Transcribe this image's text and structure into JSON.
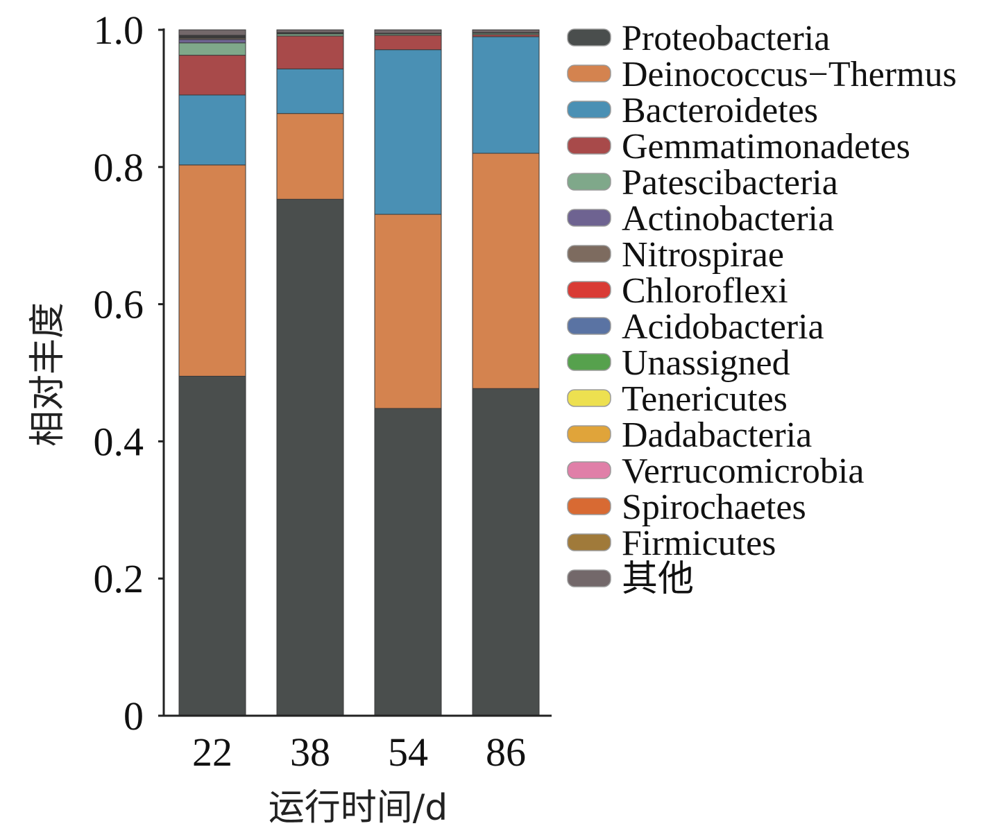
{
  "chart_data": {
    "type": "bar",
    "stacked": true,
    "xlabel": "运行时间/d",
    "ylabel": "相对丰度",
    "ylim": [
      0,
      1.0
    ],
    "yticks": [
      "0",
      "0.2",
      "0.4",
      "0.6",
      "0.8",
      "1.0"
    ],
    "ytick_values": [
      0,
      0.2,
      0.4,
      0.6,
      0.8,
      1.0
    ],
    "categories": [
      "22",
      "38",
      "54",
      "86"
    ],
    "legend_position": "right",
    "series": [
      {
        "name": "Proteobacteria",
        "color": "#4a4e4d",
        "values": [
          0.495,
          0.753,
          0.448,
          0.477
        ]
      },
      {
        "name": "Deinococcus−Thermus",
        "color": "#d4834f",
        "values": [
          0.308,
          0.125,
          0.283,
          0.343
        ]
      },
      {
        "name": "Bacteroidetes",
        "color": "#4a90b4",
        "values": [
          0.102,
          0.065,
          0.24,
          0.17
        ]
      },
      {
        "name": "Gemmatimonadetes",
        "color": "#a84a4a",
        "values": [
          0.058,
          0.048,
          0.021,
          0.003
        ]
      },
      {
        "name": "Patescibacteria",
        "color": "#7fa88a",
        "values": [
          0.018,
          0.003,
          0.002,
          0.002
        ]
      },
      {
        "name": "Actinobacteria",
        "color": "#6e6391",
        "values": [
          0.005,
          0.001,
          0.001,
          0.001
        ]
      },
      {
        "name": "Nitrospirae",
        "color": "#7d6b5f",
        "values": [
          0.002,
          0.0,
          0.0,
          0.0
        ]
      },
      {
        "name": "Chloroflexi",
        "color": "#d93b35",
        "values": [
          0.001,
          0.0,
          0.0,
          0.0
        ]
      },
      {
        "name": "Acidobacteria",
        "color": "#5a73a3",
        "values": [
          0.001,
          0.0,
          0.0,
          0.0
        ]
      },
      {
        "name": "Unassigned",
        "color": "#56a14d",
        "values": [
          0.001,
          0.001,
          0.0,
          0.0
        ]
      },
      {
        "name": "Tenericutes",
        "color": "#ede050",
        "values": [
          0.0,
          0.0,
          0.0,
          0.0
        ]
      },
      {
        "name": "Dadabacteria",
        "color": "#e0a43a",
        "values": [
          0.0,
          0.0,
          0.0,
          0.0
        ]
      },
      {
        "name": "Verrucomicrobia",
        "color": "#e07fa8",
        "values": [
          0.0,
          0.0,
          0.0,
          0.0
        ]
      },
      {
        "name": "Spirochaetes",
        "color": "#d86a33",
        "values": [
          0.0,
          0.0,
          0.0,
          0.0
        ]
      },
      {
        "name": "Firmicutes",
        "color": "#a07a3a",
        "values": [
          0.001,
          0.0,
          0.0,
          0.0
        ]
      },
      {
        "name": "其他",
        "color": "#73686a",
        "values": [
          0.008,
          0.004,
          0.005,
          0.004
        ]
      }
    ]
  }
}
